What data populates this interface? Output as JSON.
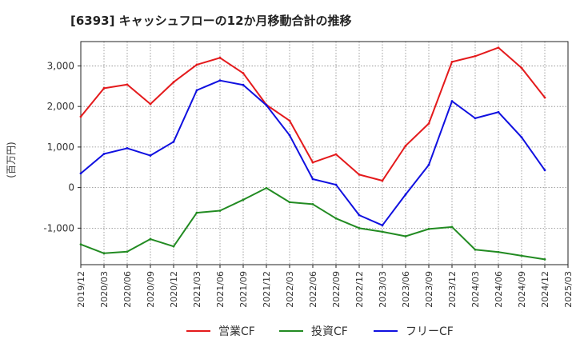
{
  "chart_data": {
    "type": "line",
    "title": "[6393]  キャッシュフローの12か月移動合計の推移",
    "ylabel": "(百万円)",
    "xlabel": "",
    "ylim": [
      -1900,
      3600
    ],
    "yticks": [
      -1000,
      0,
      1000,
      2000,
      3000
    ],
    "ytick_labels": [
      "-1,000",
      "0",
      "1,000",
      "2,000",
      "3,000"
    ],
    "categories": [
      "2019/12",
      "2020/03",
      "2020/06",
      "2020/09",
      "2020/12",
      "2021/03",
      "2021/06",
      "2021/09",
      "2021/12",
      "2022/03",
      "2022/06",
      "2022/09",
      "2022/12",
      "2023/03",
      "2023/06",
      "2023/09",
      "2023/12",
      "2024/03",
      "2024/06",
      "2024/09",
      "2024/12",
      "2025/03"
    ],
    "grid": true,
    "legend_position": "bottom-center",
    "series": [
      {
        "name": "営業CF",
        "color": "#e41a1c",
        "values": [
          1750,
          2450,
          2540,
          2060,
          2600,
          3030,
          3200,
          2820,
          2040,
          1650,
          620,
          820,
          320,
          170,
          1030,
          1580,
          3100,
          3240,
          3450,
          2950,
          2220,
          null
        ]
      },
      {
        "name": "投資CF",
        "color": "#228b22",
        "values": [
          -1400,
          -1620,
          -1580,
          -1270,
          -1450,
          -620,
          -570,
          -300,
          -10,
          -360,
          -410,
          -760,
          -1000,
          -1090,
          -1200,
          -1020,
          -970,
          -1530,
          -1590,
          -1680,
          -1770,
          null
        ]
      },
      {
        "name": "フリーCF",
        "color": "#1010e0",
        "values": [
          350,
          830,
          970,
          790,
          1130,
          2400,
          2640,
          2530,
          2030,
          1290,
          210,
          70,
          -680,
          -930,
          -170,
          560,
          2130,
          1710,
          1860,
          1240,
          430,
          null
        ]
      }
    ]
  }
}
